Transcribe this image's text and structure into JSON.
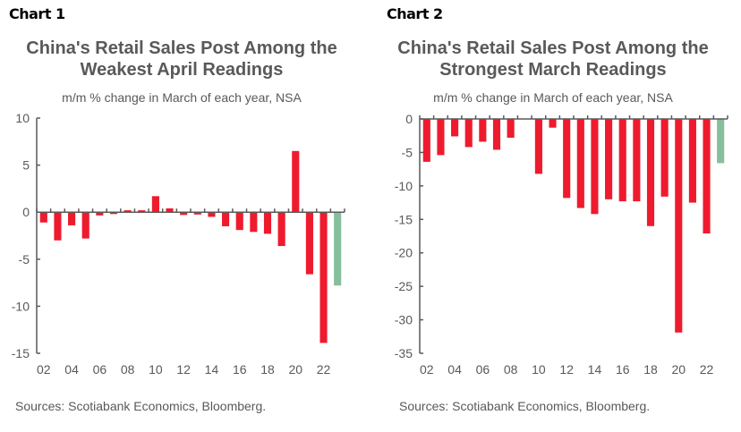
{
  "chart_data": [
    {
      "label": "Chart 1",
      "type": "bar",
      "title_line1": "China's Retail Sales Post Among the",
      "title_line2": "Weakest April Readings",
      "subtitle": "m/m % change in March of each year, NSA",
      "source": "Sources: Scotiabank Economics, Bloomberg.",
      "categories": [
        "02",
        "03",
        "04",
        "05",
        "06",
        "07",
        "08",
        "09",
        "10",
        "11",
        "12",
        "13",
        "14",
        "15",
        "16",
        "17",
        "18",
        "19",
        "20",
        "21",
        "22",
        "23"
      ],
      "tick_labels": [
        "02",
        "04",
        "06",
        "08",
        "10",
        "12",
        "14",
        "16",
        "18",
        "20",
        "22"
      ],
      "values": [
        -1.1,
        -3.0,
        -1.4,
        -2.8,
        -0.35,
        -0.2,
        0.2,
        0.2,
        1.7,
        0.4,
        -0.3,
        -0.25,
        -0.5,
        -1.5,
        -1.9,
        -2.1,
        -2.3,
        -3.6,
        6.5,
        -6.6,
        -13.9,
        -7.8
      ],
      "ylim": [
        -15,
        10
      ],
      "yticks": [
        10,
        5,
        0,
        -5,
        -10,
        -15
      ],
      "colors": {
        "bar": "#ee1b2e",
        "latest": "#86bf9b",
        "axis": "#595959"
      }
    },
    {
      "label": "Chart 2",
      "type": "bar",
      "title_line1": "China's Retail Sales Post Among the",
      "title_line2": "Strongest March Readings",
      "subtitle": "m/m % change in March of each year, NSA",
      "source": "Sources: Scotiabank Economics, Bloomberg.",
      "categories": [
        "02",
        "03",
        "04",
        "05",
        "06",
        "07",
        "08",
        "09",
        "10",
        "11",
        "12",
        "13",
        "14",
        "15",
        "16",
        "17",
        "18",
        "19",
        "20",
        "21",
        "22",
        "23"
      ],
      "tick_labels": [
        "02",
        "04",
        "06",
        "08",
        "10",
        "12",
        "14",
        "16",
        "18",
        "20",
        "22"
      ],
      "values": [
        -6.4,
        -5.4,
        -2.6,
        -4.2,
        -3.4,
        -4.6,
        -2.8,
        0,
        -8.2,
        -1.3,
        -11.8,
        -13.3,
        -14.2,
        -12.0,
        -12.3,
        -12.3,
        -16.0,
        -11.6,
        -31.9,
        -12.5,
        -17.1,
        -6.6
      ],
      "ylim": [
        -35,
        0
      ],
      "yticks": [
        0,
        -5,
        -10,
        -15,
        -20,
        -25,
        -30,
        -35
      ],
      "colors": {
        "bar": "#ee1b2e",
        "latest": "#86bf9b",
        "axis": "#595959"
      }
    }
  ]
}
